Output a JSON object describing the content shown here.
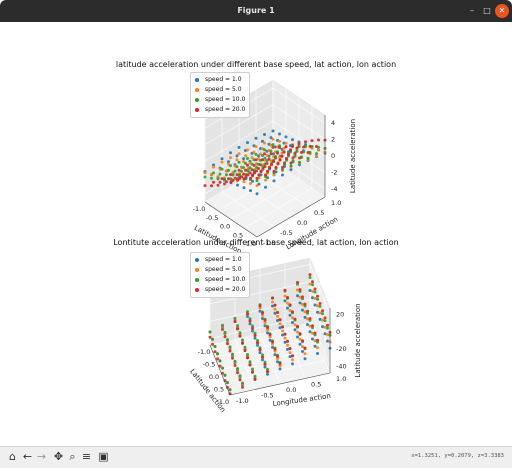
{
  "window": {
    "title": "Figure 1",
    "controls": [
      "minimize-icon",
      "maximize-icon",
      "close-icon"
    ]
  },
  "toolbar": {
    "buttons": [
      "home-icon",
      "back-arrow-icon",
      "forward-arrow-icon",
      "pan-icon",
      "zoom-icon",
      "configure-subplots-icon",
      "save-icon"
    ],
    "coords": "x=1.3251, y=0.2079, z=3.3383"
  },
  "colors": {
    "speed_1": "#1f77b4",
    "speed_5": "#ff7f0e",
    "speed_10": "#2ca02c",
    "speed_20": "#d62728"
  },
  "chart_data": [
    {
      "type": "scatter",
      "projection": "3d",
      "title": "latitude acceleration under different base speed, lat action, lon action",
      "xlabel": "Latitude action",
      "ylabel": "Longitude action",
      "zlabel": "Latitude acceleration",
      "x_ticks": [
        "-1.0",
        "-0.5",
        "0.0",
        "0.5",
        "1.0"
      ],
      "y_ticks": [
        "-1.0",
        "-0.5",
        "0.0",
        "0.5",
        "1.0"
      ],
      "z_ticks": [
        "-4",
        "-2",
        "0",
        "2",
        "4"
      ],
      "xlim": [
        -1,
        1
      ],
      "ylim": [
        -1,
        1
      ],
      "zlim": [
        -5,
        5
      ],
      "legend": [
        "speed = 1.0",
        "speed = 5.0",
        "speed = 10.0",
        "speed = 20.0"
      ],
      "legend_position": "upper-left",
      "grid": true
    },
    {
      "type": "scatter",
      "projection": "3d",
      "title": "Lontitute acceleration under different base speed, lat action, lon action",
      "xlabel": "Latitude action",
      "ylabel": "Longitude action",
      "zlabel": "Latitude acceleration",
      "x_ticks": [
        "-1.0",
        "-0.5",
        "0.0",
        "0.5",
        "1.0"
      ],
      "y_ticks": [
        "-1.0",
        "-0.5",
        "0.0",
        "0.5",
        "1.0"
      ],
      "z_ticks": [
        "-40",
        "-20",
        "0",
        "20"
      ],
      "xlim": [
        -1,
        1
      ],
      "ylim": [
        -1,
        1
      ],
      "zlim": [
        -45,
        30
      ],
      "legend": [
        "speed = 1.0",
        "speed = 5.0",
        "speed = 10.0",
        "speed = 20.0"
      ],
      "legend_position": "upper-left",
      "grid": true
    }
  ]
}
